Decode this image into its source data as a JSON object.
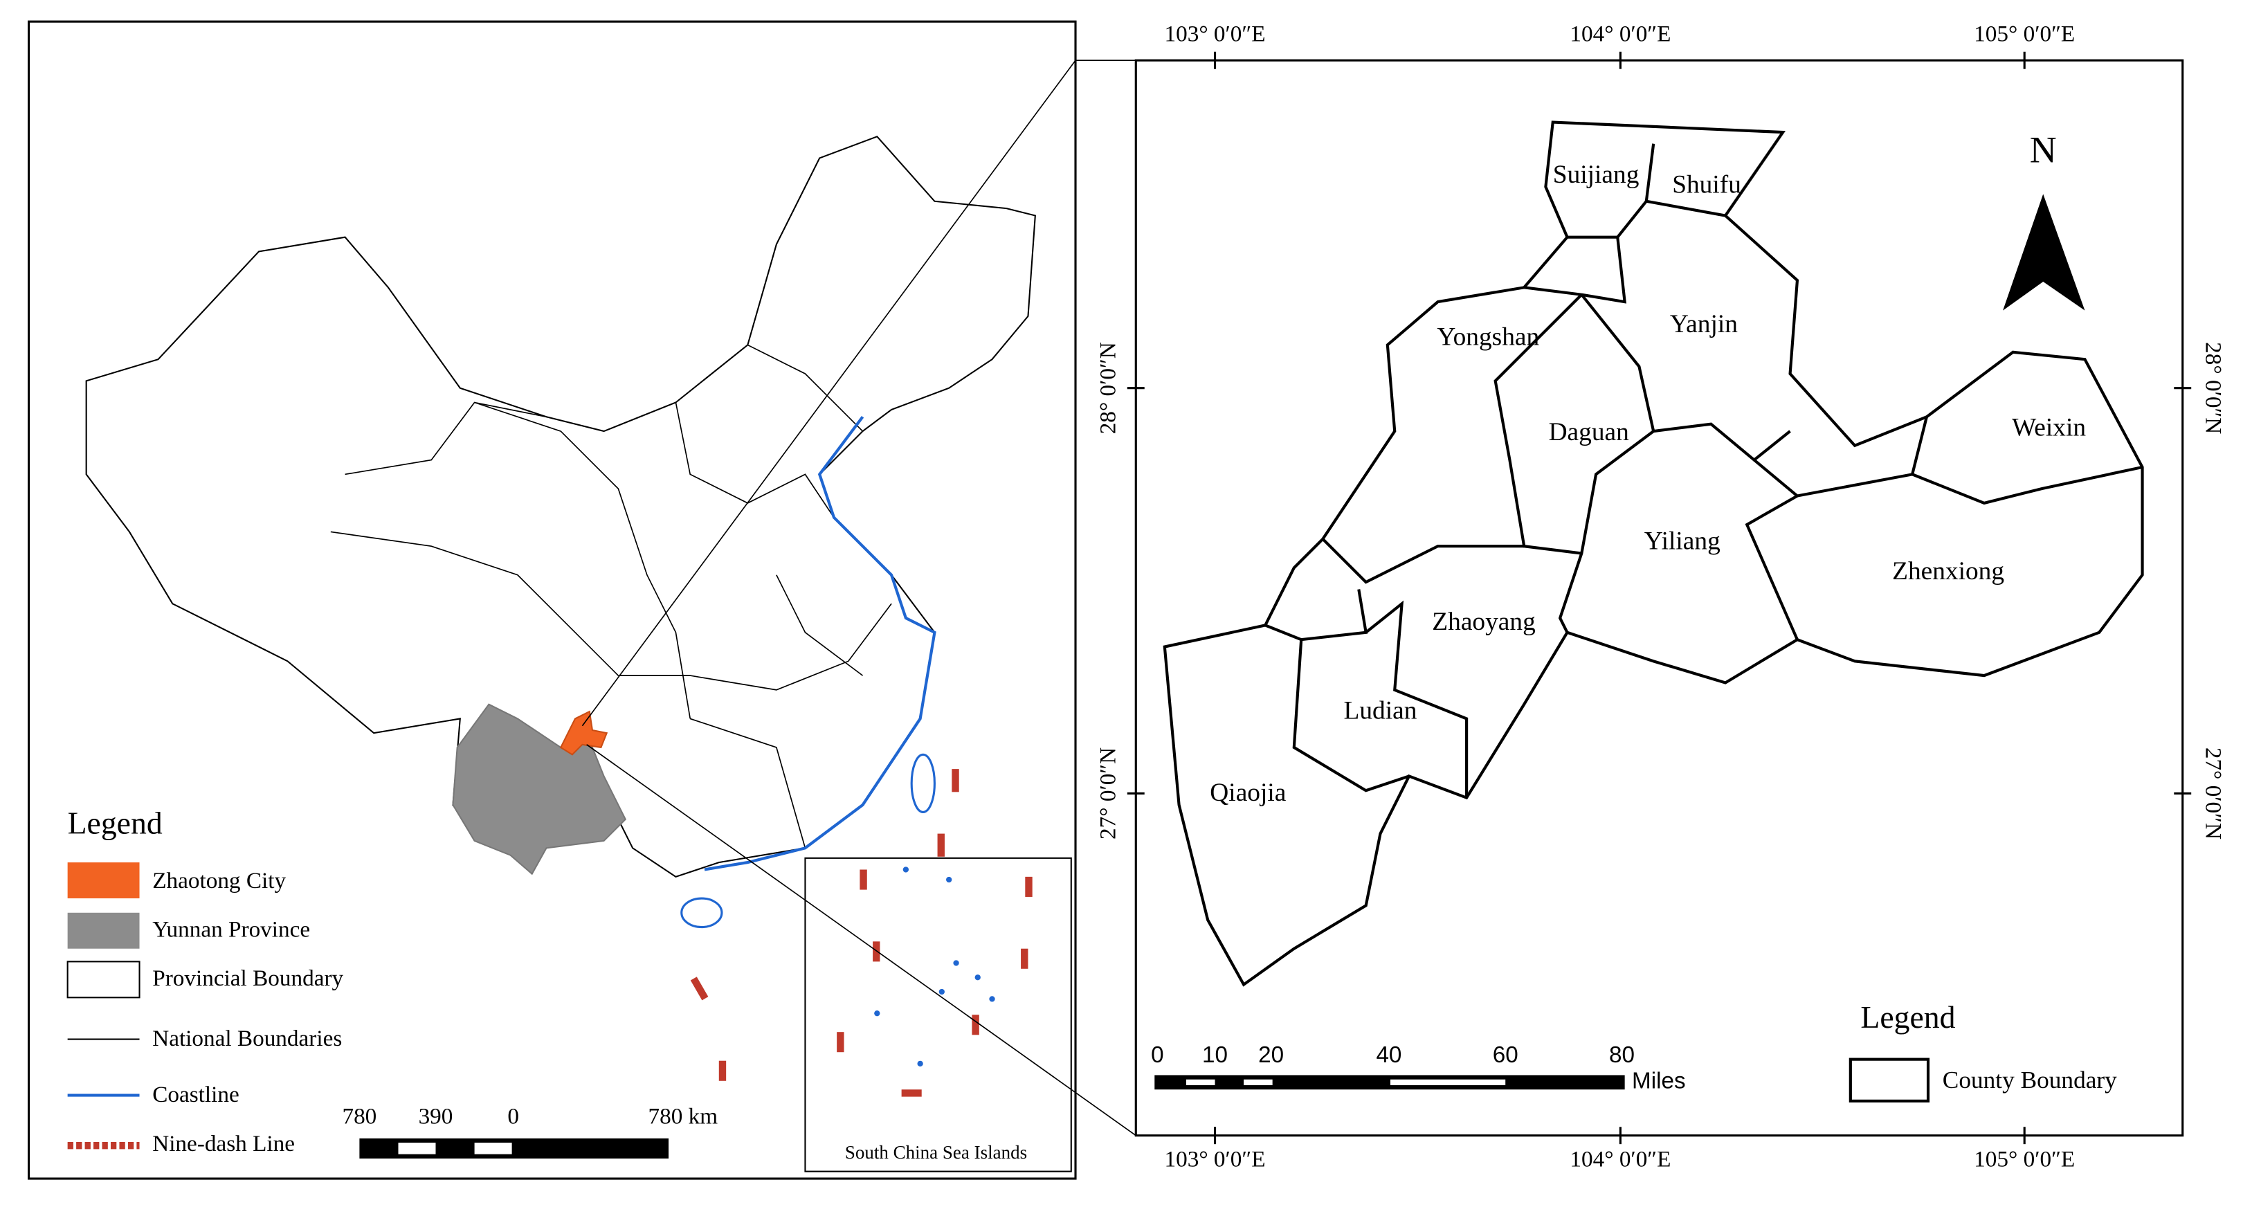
{
  "left_map": {
    "legend": {
      "title": "Legend",
      "items": [
        "Zhaotong City",
        "Yunnan Province",
        "Provincial Boundary",
        "National Boundaries",
        "Coastline",
        "Nine-dash Line"
      ]
    },
    "scale_bar": {
      "labels": [
        "780",
        "390",
        "0",
        "780 km"
      ]
    },
    "inset_label": "South China Sea Islands"
  },
  "right_map": {
    "north": "N",
    "counties": [
      "Suijiang",
      "Shuifu",
      "Yongshan",
      "Yanjin",
      "Daguan",
      "Weixin",
      "Yiliang",
      "Zhenxiong",
      "Zhaoyang",
      "Ludian",
      "Qiaojia"
    ],
    "top_longitudes": [
      "103° 0′0″E",
      "104° 0′0″E",
      "105° 0′0″E"
    ],
    "bottom_longitudes": [
      "103° 0′0″E",
      "104° 0′0″E",
      "105° 0′0″E"
    ],
    "left_latitudes": [
      "28° 0′0″N",
      "27° 0′0″N"
    ],
    "right_latitudes": [
      "28° 0′0″N",
      "27° 0′0″N"
    ],
    "scale_bar": {
      "labels": [
        "0",
        "10",
        "20",
        "40",
        "60",
        "80"
      ],
      "unit": "Miles"
    },
    "legend": {
      "title": "Legend",
      "items": [
        "County Boundary"
      ]
    }
  }
}
